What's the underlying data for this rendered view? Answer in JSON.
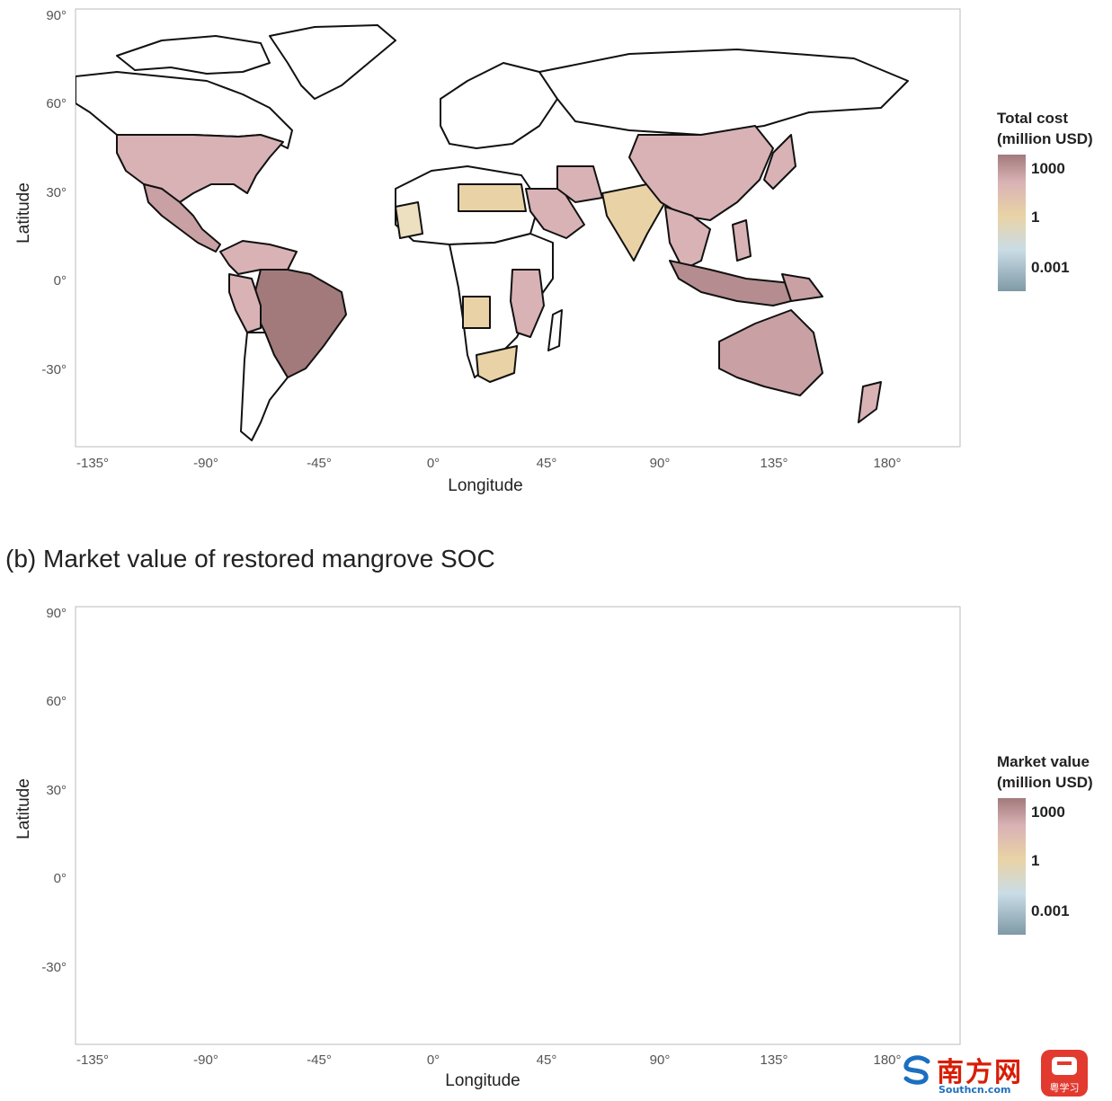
{
  "panel_a": {
    "title": "",
    "x_axis": {
      "label": "Longitude",
      "ticks": [
        "-135°",
        "-90°",
        "-45°",
        "0°",
        "45°",
        "90°",
        "135°",
        "180°"
      ],
      "range": [
        -140,
        195
      ]
    },
    "y_axis": {
      "label": "Latitude",
      "ticks": [
        "90°",
        "60°",
        "30°",
        "0°",
        "-30°"
      ],
      "range": [
        -57,
        91
      ]
    },
    "legend": {
      "title_line1": "Total cost",
      "title_line2": "(million USD)",
      "labels": [
        "1000",
        "1",
        "0.001"
      ],
      "scale": "log"
    }
  },
  "panel_b": {
    "title": "(b) Market value of restored mangrove SOC",
    "x_axis": {
      "label": "Longitude",
      "ticks": [
        "-135°",
        "-90°",
        "-45°",
        "0°",
        "45°",
        "90°",
        "135°",
        "180°"
      ],
      "range": [
        -140,
        195
      ]
    },
    "y_axis": {
      "label": "Latitude",
      "ticks": [
        "90°",
        "60°",
        "30°",
        "0°",
        "-30°"
      ],
      "range": [
        -57,
        91
      ]
    },
    "legend": {
      "title_line1": "Market value",
      "title_line2": "(million USD)",
      "labels": [
        "1000",
        "1",
        "0.001"
      ],
      "scale": "log"
    }
  },
  "colors": {
    "high": "#a27a7c",
    "upper": "#d9b2b5",
    "mid": "#e9d3a6",
    "lower": "#c9dce6",
    "low": "#7f9aa6",
    "no_data": "#ffffff",
    "border": "#111111",
    "frame": "#bbbbbb"
  },
  "watermark": {
    "brand_cn": "南方网",
    "brand_url": "Southcn.com",
    "app_cn": "粤学习"
  }
}
